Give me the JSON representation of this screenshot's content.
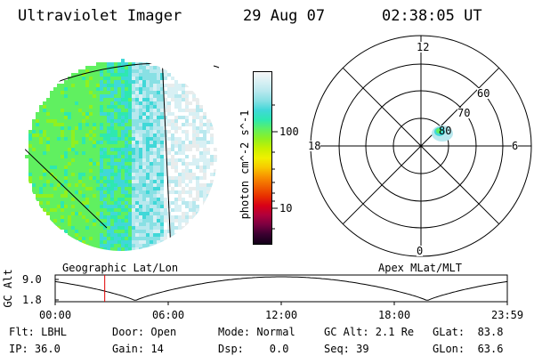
{
  "header": {
    "title": "Ultraviolet Imager",
    "date": "29 Aug 07",
    "time": "02:38:05 UT"
  },
  "colorbar": {
    "unit_label": "photon cm^-2 s^-1",
    "ticks": [
      "100",
      "10"
    ],
    "colors": [
      "#f6f6f6",
      "#d8f0f4",
      "#b8e8ee",
      "#88e0e4",
      "#40d8d8",
      "#2ee8b0",
      "#60f060",
      "#90f020",
      "#c8f000",
      "#f0f000",
      "#f8c800",
      "#f89000",
      "#f06000",
      "#e83000",
      "#d80018",
      "#b0003c",
      "#7a0040",
      "#3a0030",
      "#120018"
    ]
  },
  "polar_plot": {
    "mlt_labels": {
      "top": "12",
      "left": "18",
      "right": "6",
      "bottom": "0"
    },
    "lat_labels": [
      "60",
      "70",
      "80"
    ]
  },
  "altitude_strip": {
    "ylabel": "GC Alt",
    "y_ticks": [
      "9.0",
      "1.8"
    ],
    "left_caption": "Geographic Lat/Lon",
    "right_caption": "Apex MLat/MLT",
    "x_ticks": [
      "00:00",
      "06:00",
      "12:00",
      "18:00",
      "23:59"
    ],
    "marker_hour": 2.63
  },
  "info": {
    "flt": "Flt: LBHL",
    "door": "Door: Open",
    "mode": "Mode: Normal",
    "gc_alt": "GC Alt: 2.1 Re",
    "glat": "GLat:  83.8",
    "ip": "IP: 36.0",
    "gain": "Gain: 14",
    "dsp": "Dsp:    0.0",
    "seq": "Seq: 39",
    "glon": "GLon:  63.6"
  }
}
